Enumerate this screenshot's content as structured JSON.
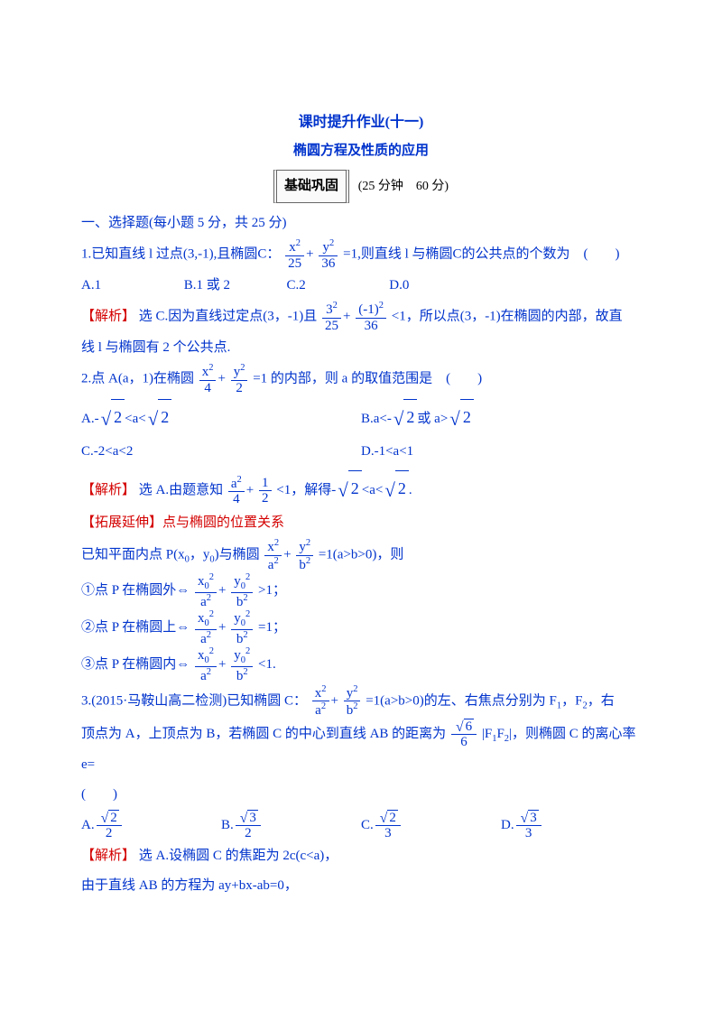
{
  "header": {
    "title": "课时提升作业(十一)",
    "subtitle": "椭圆方程及性质的应用",
    "section_badge": "基础巩固",
    "section_meta": "(25 分钟　60 分)"
  },
  "s1": {
    "heading": "一、选择题(每小题 5 分，共 25 分)"
  },
  "q1": {
    "stem_a": "1.已知直线 l 过点(3,-1),且椭圆C：",
    "frac1_num": "x",
    "frac1_den": "25",
    "frac2_num": "y",
    "frac2_den": "36",
    "stem_b": "=1,则直线 l 与椭圆C的公共点的个数为　(　　)",
    "optA": "A.1",
    "optB": "B.1 或 2",
    "optC": "C.2",
    "optD": "D.0",
    "ans_label": "【解析】",
    "ans_a": "选 C.因为直线过定点(3，-1)且",
    "a_frac1_num": "3",
    "a_frac1_den": "25",
    "a_frac2_num": "(-1)",
    "a_frac2_den": "36",
    "ans_b": "<1，所以点(3，-1)在椭圆的内部，故直",
    "ans_c": "线 l 与椭圆有 2 个公共点."
  },
  "q2": {
    "stem_a": "2.点 A(a，1)在椭圆",
    "frac1_num": "x",
    "frac1_den": "4",
    "frac2_num": "y",
    "frac2_den": "2",
    "stem_b": "=1 的内部，则 a 的取值范围是　(　　)",
    "optA_a": "A.-",
    "optA_b": "<a<",
    "optB_a": "B.a<-",
    "optB_b": "或 a>",
    "optC": "C.-2<a<2",
    "optD": "D.-1<a<1",
    "ans_label": "【解析】",
    "ans_a": "选 A.由题意知",
    "a_frac1_num": "a",
    "a_frac1_den": "4",
    "a_frac2_num": "1",
    "a_frac2_den": "2",
    "ans_b": "<1，解得-",
    "ans_c": "<a<",
    "ans_d": "."
  },
  "ext": {
    "title": "【拓展延伸】点与椭圆的位置关系",
    "line1_a": "已知平面内点 P(x",
    "line1_b": "，y",
    "line1_c": ")与椭圆",
    "ef1_num": "x",
    "ef1_den": "a",
    "ef2_num": "y",
    "ef2_den": "b",
    "line1_d": "=1(a>b>0)，则",
    "c1": "①点 P 在椭圆外⇔",
    "c1_end": ">1；",
    "c2": "②点 P 在椭圆上⇔",
    "c2_end": "=1；",
    "c3": "③点 P 在椭圆内⇔",
    "c3_end": "<1.",
    "cf1_num": "x",
    "cf1_den": "a",
    "cf2_num": "y",
    "cf2_den": "b"
  },
  "q3": {
    "stem_a": "3.(2015·马鞍山高二检测)已知椭圆 C：",
    "frac1_num": "x",
    "frac1_den": "a",
    "frac2_num": "y",
    "frac2_den": "b",
    "stem_b": "=1(a>b>0)的左、右焦点分别为 F",
    "stem_c": "，F",
    "stem_d": "，右",
    "line2_a": "顶点为 A，上顶点为 B，若椭圆 C 的中心到直线 AB 的距离为",
    "df_num": "6",
    "df_den": "6",
    "line2_b": "|F",
    "line2_c": "F",
    "line2_d": "|，则椭圆 C 的离心率 e=",
    "paren": "(　　)",
    "oA_num": "2",
    "oA_den": "2",
    "oB_num": "3",
    "oB_den": "2",
    "oC_num": "2",
    "oC_den": "3",
    "oD_num": "3",
    "oD_den": "3",
    "oA": "A.",
    "oB": "B.",
    "oC": "C.",
    "oD": "D.",
    "ans_label": "【解析】",
    "ans_a": "选 A.设椭圆 C 的焦距为 2c(c<a)，",
    "ans_b": "由于直线 AB 的方程为 ay+bx-ab=0，"
  },
  "sqrt2": "2"
}
